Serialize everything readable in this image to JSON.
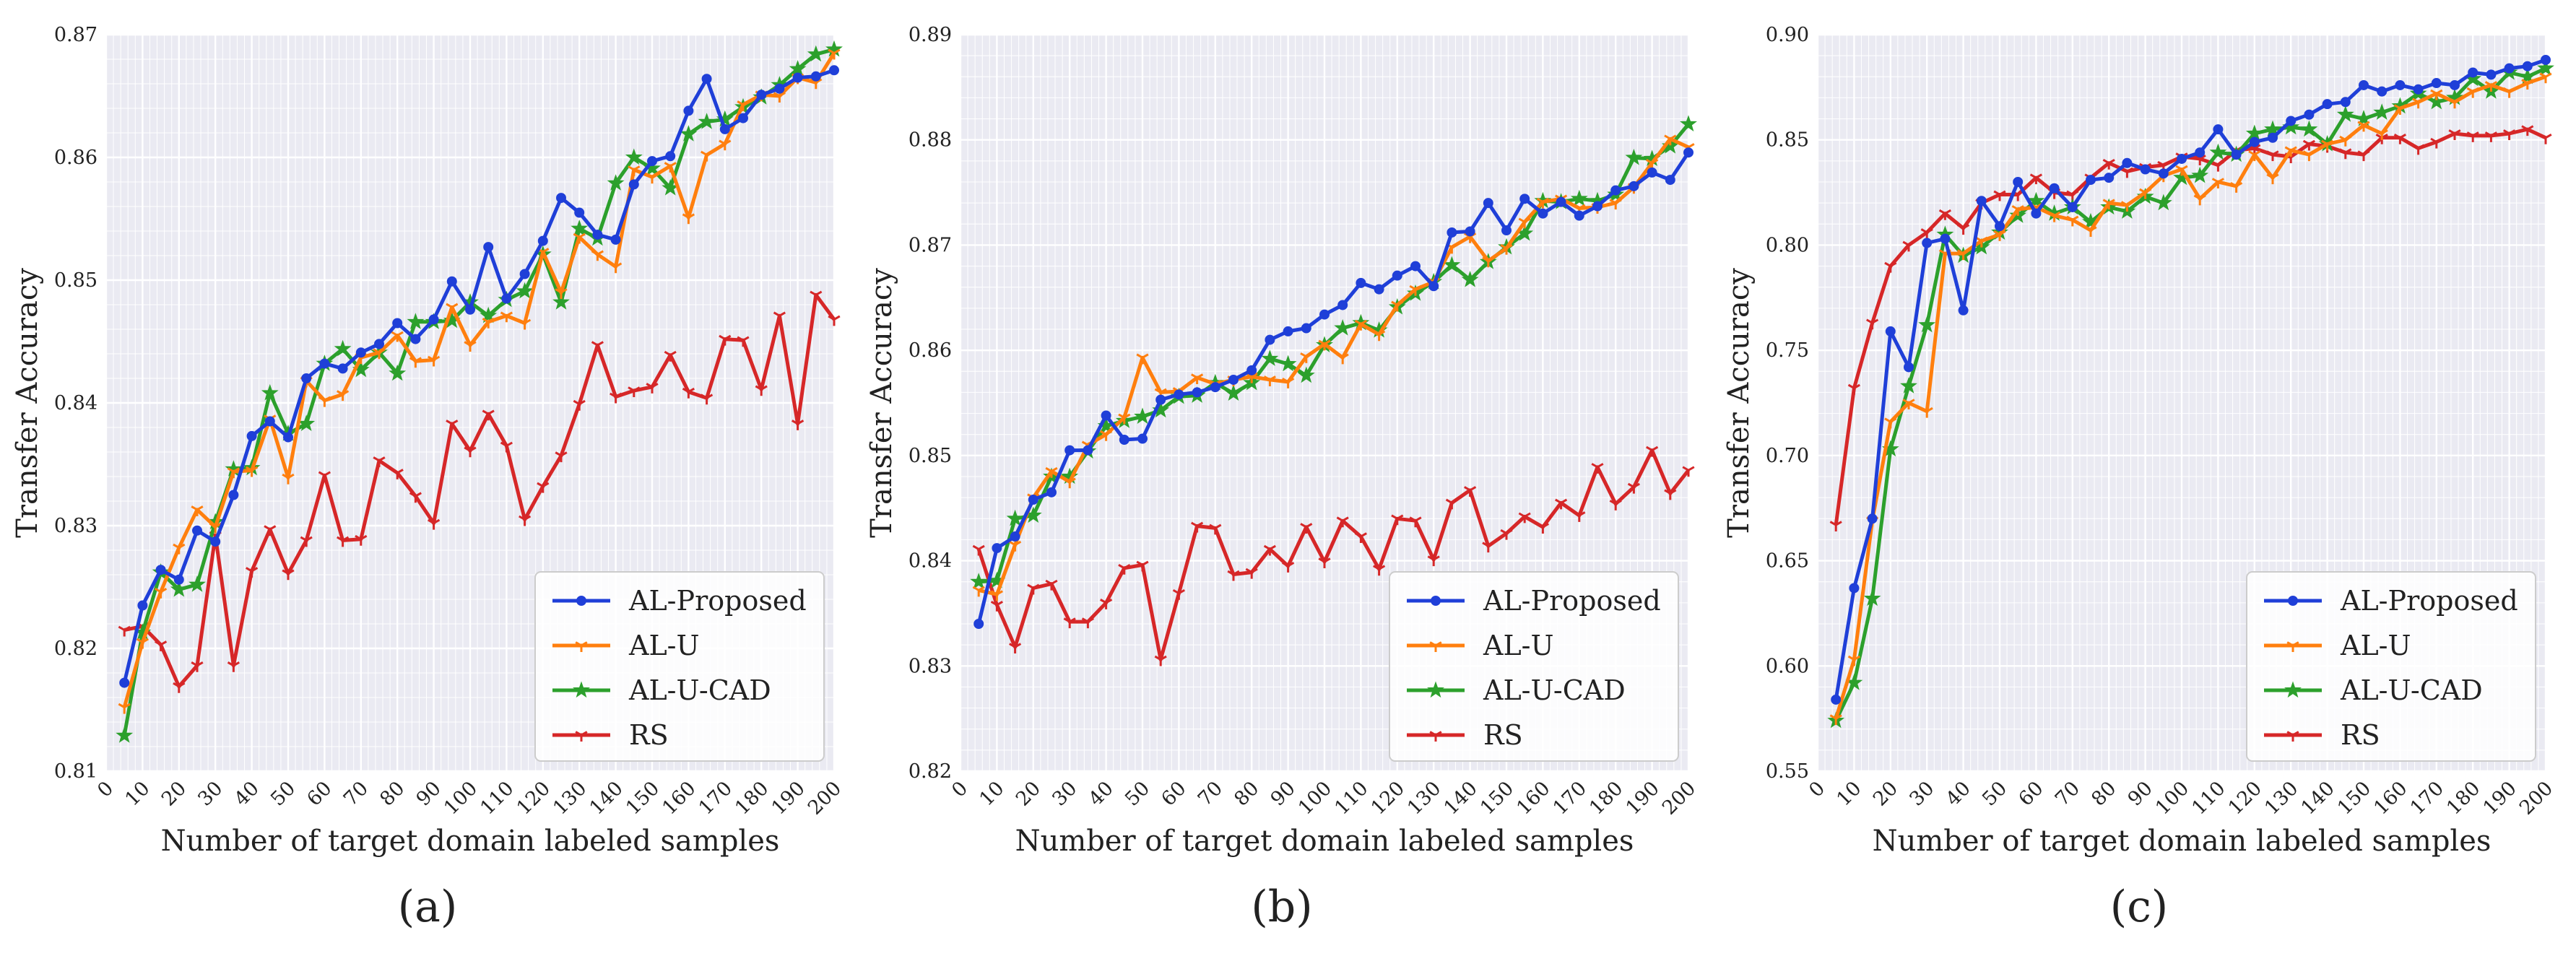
{
  "figure": {
    "xlabel": "Number of target domain labeled samples",
    "ylabel": "Transfer Accuracy",
    "series_colors": {
      "AL-Proposed": "#1f3fd8",
      "AL-U": "#ff7f0e",
      "AL-U-CAD": "#2ca02c",
      "RS": "#d62728"
    },
    "panel_background": "#eaeaf2",
    "grid_color": "#ffffff"
  },
  "chart_data": [
    {
      "type": "line",
      "caption": "(a)",
      "xlabel": "Number of target domain labeled samples",
      "ylabel": "Transfer Accuracy",
      "xlim": [
        0,
        200
      ],
      "ylim": [
        0.81,
        0.87
      ],
      "yticks": [
        "0.81",
        "0.82",
        "0.83",
        "0.84",
        "0.85",
        "0.86",
        "0.87"
      ],
      "xticks": [
        "0",
        "10",
        "20",
        "30",
        "40",
        "50",
        "60",
        "70",
        "80",
        "90",
        "100",
        "110",
        "120",
        "130",
        "140",
        "150",
        "160",
        "170",
        "180",
        "190",
        "200"
      ],
      "legend": {
        "position": "bottom-right",
        "entries": [
          "AL-Proposed",
          "AL-U",
          "AL-U-CAD",
          "RS"
        ]
      },
      "x": [
        5,
        10,
        15,
        20,
        25,
        30,
        35,
        40,
        45,
        50,
        55,
        60,
        65,
        70,
        75,
        80,
        85,
        90,
        95,
        100,
        105,
        110,
        115,
        120,
        125,
        130,
        135,
        140,
        145,
        150,
        155,
        160,
        165,
        170,
        175,
        180,
        185,
        190,
        195,
        200
      ],
      "series": [
        {
          "name": "AL-Proposed",
          "marker": "circle",
          "values": [
            0.8172,
            0.8235,
            0.8264,
            0.8256,
            0.8296,
            0.8287,
            0.8325,
            0.8373,
            0.8385,
            0.8372,
            0.842,
            0.8432,
            0.8428,
            0.8441,
            0.8448,
            0.8465,
            0.8452,
            0.8468,
            0.8499,
            0.8476,
            0.8527,
            0.8485,
            0.8505,
            0.8532,
            0.8567,
            0.8555,
            0.8537,
            0.8533,
            0.8578,
            0.8597,
            0.8601,
            0.8638,
            0.8664,
            0.8623,
            0.8632,
            0.8651,
            0.8656,
            0.8665,
            0.8666,
            0.8671
          ]
        },
        {
          "name": "AL-U",
          "marker": "tri",
          "values": [
            0.8152,
            0.8205,
            0.8246,
            0.8282,
            0.8313,
            0.8299,
            0.8344,
            0.8345,
            0.8387,
            0.8339,
            0.8418,
            0.8402,
            0.8407,
            0.8437,
            0.8441,
            0.8455,
            0.8434,
            0.8435,
            0.8478,
            0.8447,
            0.8466,
            0.8471,
            0.8465,
            0.8523,
            0.849,
            0.8535,
            0.8521,
            0.8511,
            0.859,
            0.8584,
            0.8593,
            0.8551,
            0.8602,
            0.8611,
            0.8643,
            0.8651,
            0.865,
            0.8665,
            0.8661,
            0.8685
          ]
        },
        {
          "name": "AL-U-CAD",
          "marker": "star",
          "values": [
            0.8129,
            0.8213,
            0.8262,
            0.8248,
            0.8252,
            0.8303,
            0.8346,
            0.8347,
            0.8408,
            0.8375,
            0.8383,
            0.8432,
            0.8444,
            0.8427,
            0.8441,
            0.8424,
            0.8466,
            0.8466,
            0.8467,
            0.8482,
            0.8471,
            0.8484,
            0.8491,
            0.8521,
            0.8482,
            0.8542,
            0.8534,
            0.8579,
            0.86,
            0.8591,
            0.8575,
            0.8619,
            0.8629,
            0.8631,
            0.8641,
            0.8649,
            0.8659,
            0.8672,
            0.8684,
            0.8688
          ]
        },
        {
          "name": "RS",
          "marker": "tri",
          "values": [
            0.8215,
            0.8218,
            0.8203,
            0.8169,
            0.8186,
            0.8292,
            0.8186,
            0.8263,
            0.8297,
            0.8261,
            0.8288,
            0.8341,
            0.8288,
            0.8289,
            0.8353,
            0.8343,
            0.8324,
            0.8302,
            0.8383,
            0.8361,
            0.8391,
            0.8365,
            0.8305,
            0.8332,
            0.8357,
            0.8399,
            0.8447,
            0.8405,
            0.841,
            0.8413,
            0.8439,
            0.8409,
            0.8404,
            0.8452,
            0.8451,
            0.8411,
            0.8471,
            0.8383,
            0.8488,
            0.8468
          ]
        }
      ]
    },
    {
      "type": "line",
      "caption": "(b)",
      "xlabel": "Number of target domain labeled samples",
      "ylabel": "Transfer Accuracy",
      "xlim": [
        0,
        200
      ],
      "ylim": [
        0.82,
        0.89
      ],
      "yticks": [
        "0.82",
        "0.83",
        "0.84",
        "0.85",
        "0.86",
        "0.87",
        "0.88",
        "0.89"
      ],
      "xticks": [
        "0",
        "10",
        "20",
        "30",
        "40",
        "50",
        "60",
        "70",
        "80",
        "90",
        "100",
        "110",
        "120",
        "130",
        "140",
        "150",
        "160",
        "170",
        "180",
        "190",
        "200"
      ],
      "legend": {
        "position": "bottom-right",
        "entries": [
          "AL-Proposed",
          "AL-U",
          "AL-U-CAD",
          "RS"
        ]
      },
      "x": [
        5,
        10,
        15,
        20,
        25,
        30,
        35,
        40,
        45,
        50,
        55,
        60,
        65,
        70,
        75,
        80,
        85,
        90,
        95,
        100,
        105,
        110,
        115,
        120,
        125,
        130,
        135,
        140,
        145,
        150,
        155,
        160,
        165,
        170,
        175,
        180,
        185,
        190,
        195,
        200
      ],
      "series": [
        {
          "name": "AL-Proposed",
          "marker": "circle",
          "values": [
            0.834,
            0.8412,
            0.8423,
            0.8458,
            0.8465,
            0.8505,
            0.8505,
            0.8538,
            0.8515,
            0.8516,
            0.8553,
            0.8558,
            0.856,
            0.8565,
            0.8572,
            0.8581,
            0.861,
            0.8618,
            0.8621,
            0.8634,
            0.8643,
            0.8664,
            0.8658,
            0.8671,
            0.868,
            0.8661,
            0.8712,
            0.8713,
            0.874,
            0.8714,
            0.8744,
            0.873,
            0.8741,
            0.8728,
            0.8737,
            0.8752,
            0.8756,
            0.8769,
            0.8762,
            0.8788
          ]
        },
        {
          "name": "AL-U",
          "marker": "tri",
          "values": [
            0.8372,
            0.8368,
            0.8415,
            0.846,
            0.8485,
            0.8475,
            0.851,
            0.852,
            0.8536,
            0.8593,
            0.856,
            0.8561,
            0.8574,
            0.8568,
            0.8572,
            0.8575,
            0.8572,
            0.857,
            0.8594,
            0.8606,
            0.8593,
            0.8625,
            0.8615,
            0.8643,
            0.8658,
            0.8665,
            0.8698,
            0.8708,
            0.8685,
            0.8697,
            0.8722,
            0.8741,
            0.8744,
            0.8735,
            0.8736,
            0.874,
            0.8755,
            0.8778,
            0.8801,
            0.8793
          ]
        },
        {
          "name": "AL-U-CAD",
          "marker": "star",
          "values": [
            0.838,
            0.8381,
            0.844,
            0.8443,
            0.848,
            0.848,
            0.8504,
            0.8528,
            0.8533,
            0.8537,
            0.8543,
            0.8556,
            0.8557,
            0.8569,
            0.8559,
            0.8569,
            0.8592,
            0.8587,
            0.8576,
            0.8605,
            0.8621,
            0.8626,
            0.8619,
            0.8641,
            0.8654,
            0.8665,
            0.8681,
            0.8667,
            0.8684,
            0.8698,
            0.8711,
            0.8742,
            0.8741,
            0.8744,
            0.8742,
            0.8748,
            0.8783,
            0.8782,
            0.8794,
            0.8815
          ]
        },
        {
          "name": "RS",
          "marker": "tri",
          "values": [
            0.8411,
            0.8358,
            0.8318,
            0.8374,
            0.8378,
            0.8342,
            0.8342,
            0.836,
            0.8393,
            0.8396,
            0.8306,
            0.8369,
            0.8433,
            0.8431,
            0.8387,
            0.8389,
            0.8411,
            0.8395,
            0.8432,
            0.8399,
            0.8438,
            0.8423,
            0.8392,
            0.844,
            0.8438,
            0.8401,
            0.8455,
            0.8467,
            0.8414,
            0.8426,
            0.8442,
            0.8432,
            0.8455,
            0.8443,
            0.8489,
            0.8454,
            0.847,
            0.8505,
            0.8464,
            0.8486
          ]
        }
      ]
    },
    {
      "type": "line",
      "caption": "(c)",
      "xlabel": "Number of target domain labeled samples",
      "ylabel": "Transfer Accuracy",
      "xlim": [
        0,
        200
      ],
      "ylim": [
        0.55,
        0.9
      ],
      "yticks": [
        "0.55",
        "0.60",
        "0.65",
        "0.70",
        "0.75",
        "0.80",
        "0.85",
        "0.90"
      ],
      "xticks": [
        "0",
        "10",
        "20",
        "30",
        "40",
        "50",
        "60",
        "70",
        "80",
        "90",
        "100",
        "110",
        "120",
        "130",
        "140",
        "150",
        "160",
        "170",
        "180",
        "190",
        "200"
      ],
      "legend": {
        "position": "bottom-right",
        "entries": [
          "AL-Proposed",
          "AL-U",
          "AL-U-CAD",
          "RS"
        ]
      },
      "x": [
        5,
        10,
        15,
        20,
        25,
        30,
        35,
        40,
        45,
        50,
        55,
        60,
        65,
        70,
        75,
        80,
        85,
        90,
        95,
        100,
        105,
        110,
        115,
        120,
        125,
        130,
        135,
        140,
        145,
        150,
        155,
        160,
        165,
        170,
        175,
        180,
        185,
        190,
        195,
        200
      ],
      "series": [
        {
          "name": "AL-Proposed",
          "marker": "circle",
          "values": [
            0.584,
            0.637,
            0.67,
            0.759,
            0.742,
            0.801,
            0.803,
            0.769,
            0.821,
            0.809,
            0.83,
            0.815,
            0.827,
            0.818,
            0.831,
            0.832,
            0.839,
            0.836,
            0.834,
            0.841,
            0.844,
            0.855,
            0.843,
            0.849,
            0.851,
            0.859,
            0.862,
            0.867,
            0.868,
            0.876,
            0.873,
            0.876,
            0.874,
            0.877,
            0.876,
            0.882,
            0.881,
            0.884,
            0.885,
            0.888
          ]
        },
        {
          "name": "AL-U",
          "marker": "tri",
          "values": [
            0.575,
            0.603,
            0.669,
            0.716,
            0.725,
            0.721,
            0.796,
            0.796,
            0.802,
            0.805,
            0.817,
            0.818,
            0.814,
            0.812,
            0.807,
            0.82,
            0.819,
            0.825,
            0.833,
            0.836,
            0.822,
            0.83,
            0.828,
            0.843,
            0.832,
            0.845,
            0.843,
            0.848,
            0.85,
            0.857,
            0.853,
            0.865,
            0.868,
            0.872,
            0.868,
            0.873,
            0.876,
            0.873,
            0.877,
            0.88
          ]
        },
        {
          "name": "AL-U-CAD",
          "marker": "star",
          "values": [
            0.574,
            0.592,
            0.632,
            0.703,
            0.733,
            0.762,
            0.805,
            0.795,
            0.799,
            0.806,
            0.814,
            0.821,
            0.815,
            0.818,
            0.811,
            0.818,
            0.816,
            0.823,
            0.82,
            0.832,
            0.833,
            0.844,
            0.843,
            0.853,
            0.855,
            0.856,
            0.855,
            0.848,
            0.862,
            0.86,
            0.863,
            0.866,
            0.872,
            0.868,
            0.87,
            0.879,
            0.873,
            0.882,
            0.88,
            0.884
          ]
        },
        {
          "name": "RS",
          "marker": "tri",
          "values": [
            0.667,
            0.732,
            0.763,
            0.79,
            0.8,
            0.806,
            0.815,
            0.808,
            0.82,
            0.824,
            0.824,
            0.832,
            0.825,
            0.824,
            0.832,
            0.839,
            0.835,
            0.837,
            0.838,
            0.842,
            0.841,
            0.838,
            0.845,
            0.846,
            0.843,
            0.842,
            0.848,
            0.847,
            0.844,
            0.843,
            0.851,
            0.851,
            0.846,
            0.849,
            0.853,
            0.852,
            0.852,
            0.853,
            0.855,
            0.851
          ]
        }
      ]
    }
  ]
}
